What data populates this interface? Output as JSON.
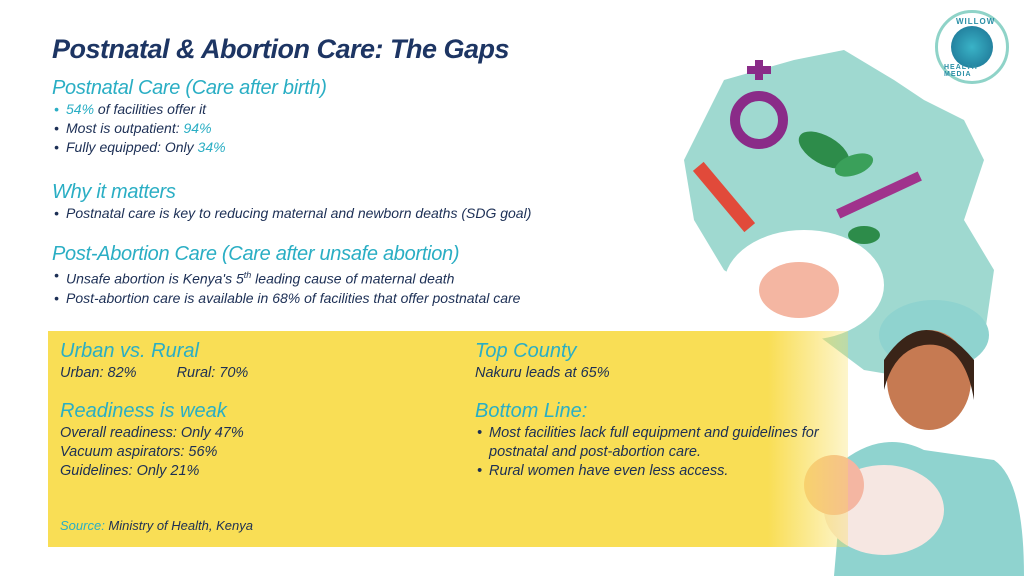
{
  "title": "Postnatal & Abortion Care: The Gaps",
  "postnatal": {
    "heading": "Postnatal Care (Care after birth)",
    "b1_val": "54%",
    "b1_text": " of facilities offer it",
    "b2_text": "Most is outpatient: ",
    "b2_val": "94%",
    "b3_text": "Fully equipped: Only ",
    "b3_val": "34%"
  },
  "why": {
    "heading": "Why it matters",
    "b1": "Postnatal care is key to reducing maternal and newborn deaths (SDG goal)"
  },
  "pac": {
    "heading": "Post-Abortion Care (Care after unsafe abortion)",
    "b1_pre": "Unsafe abortion is Kenya's 5",
    "b1_sup": "th",
    "b1_post": " leading cause of maternal death",
    "b2": "Post-abortion care is available in 68% of facilities that offer postnatal care"
  },
  "urban_rural": {
    "heading": "Urban vs. Rural",
    "urban": "Urban: 82%",
    "rural": "Rural: 70%"
  },
  "readiness": {
    "heading": "Readiness is weak",
    "lines": [
      "Overall readiness: Only 47%",
      "Vacuum aspirators: 56%",
      "Guidelines: Only 21%"
    ]
  },
  "top_county": {
    "heading": "Top County",
    "text": "Nakuru leads at 65%"
  },
  "bottom_line": {
    "heading": "Bottom Line:",
    "bullets": [
      "Most facilities lack full equipment and guidelines for postnatal and post-abortion care.",
      "Rural women have even less access."
    ]
  },
  "source": {
    "label": "Source:",
    "text": " Ministry of Health, Kenya"
  },
  "logo": {
    "top": "WILLOW",
    "bottom": "HEALTH MEDIA"
  }
}
